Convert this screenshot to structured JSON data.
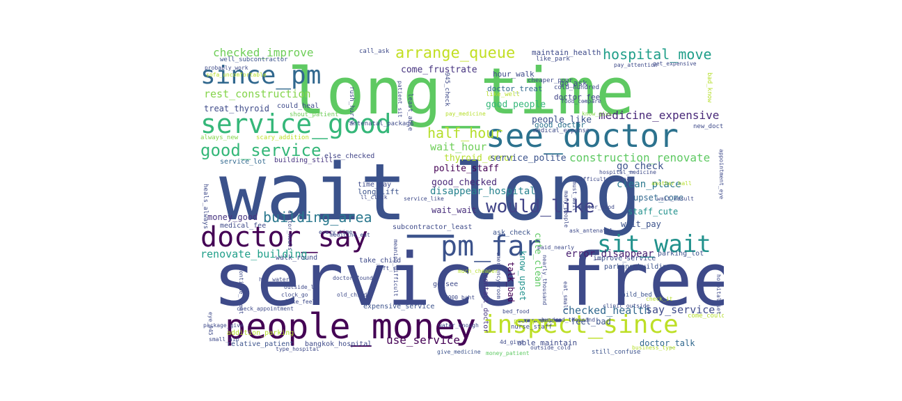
{
  "words": [
    {
      "text": "wait_long",
      "color": "#3b528b"
    },
    {
      "text": "service_free",
      "color": "#3e4a89"
    },
    {
      "text": "long_time",
      "color": "#5ec962"
    },
    {
      "text": "people_money",
      "color": "#440154"
    },
    {
      "text": "see_doctor",
      "color": "#2c728e"
    },
    {
      "text": "service_good",
      "color": "#35b779"
    },
    {
      "text": "doctor_say",
      "color": "#440154"
    },
    {
      "text": "inspect_since",
      "color": "#bddf26"
    },
    {
      "text": "since_pm",
      "color": "#31688e"
    },
    {
      "text": "pm_far",
      "color": "#3b528b"
    },
    {
      "text": "sit_wait",
      "color": "#21918c"
    },
    {
      "text": "arrange_queue",
      "color": "#c2df23"
    },
    {
      "text": "hospital_move",
      "color": "#1f9e89"
    },
    {
      "text": "good_service",
      "color": "#35b779"
    },
    {
      "text": "would_like",
      "color": "#414487"
    },
    {
      "text": "building_area",
      "color": "#2a788e"
    },
    {
      "text": "half_hour",
      "color": "#b5de2b"
    },
    {
      "text": "checked_improve",
      "color": "#6ece58"
    },
    {
      "text": "medicine_expensive",
      "color": "#482878"
    },
    {
      "text": "construction_renovate",
      "color": "#5ec962"
    },
    {
      "text": "wait_hour",
      "color": "#6ece58"
    },
    {
      "text": "use_service",
      "color": "#440154"
    },
    {
      "text": "rest_construction",
      "color": "#84d44b"
    },
    {
      "text": "checked_health",
      "color": "#31688e"
    },
    {
      "text": "say_service",
      "color": "#3e4a89"
    },
    {
      "text": "renovate_building",
      "color": "#1f9e89"
    },
    {
      "text": "error_disappear",
      "color": "#481f70"
    },
    {
      "text": "disappear_hospital",
      "color": "#26828e"
    },
    {
      "text": "go_check",
      "color": "#3b528b"
    },
    {
      "text": "clean_place",
      "color": "#2a788e"
    },
    {
      "text": "polite_staff",
      "color": "#440154"
    },
    {
      "text": "good_checked",
      "color": "#482878"
    },
    {
      "text": "thyroid_error",
      "color": "#b5de2b"
    },
    {
      "text": "service_polite",
      "color": "#3b528b"
    },
    {
      "text": "come_frustrate",
      "color": "#46337f"
    },
    {
      "text": "good_people",
      "color": "#35b779"
    },
    {
      "text": "people_like",
      "color": "#3b528b"
    },
    {
      "text": "treat_thyroid",
      "color": "#3e4a89"
    },
    {
      "text": "money_good",
      "color": "#46337f"
    },
    {
      "text": "wait_pay",
      "color": "#3b528b"
    },
    {
      "text": "staff_cute",
      "color": "#21918c"
    },
    {
      "text": "upset_come",
      "color": "#31688e"
    },
    {
      "text": "wait_wait",
      "color": "#472d7b"
    },
    {
      "text": "good_doctor",
      "color": "#2c728e"
    },
    {
      "text": "maintain_health",
      "color": "#3e4a89"
    },
    {
      "text": "doctor_treat",
      "color": "#31688e"
    },
    {
      "text": "go_ask",
      "color": "#3e4a89"
    },
    {
      "text": "doctor_fee",
      "color": "#414487"
    },
    {
      "text": "hour_walk",
      "color": "#3e4a89"
    },
    {
      "text": "cute_clean",
      "color": "#5ec962"
    },
    {
      "text": "know_upset",
      "color": "#21918c"
    },
    {
      "text": "talk_bad",
      "color": "#440154"
    },
    {
      "text": "feel_bad",
      "color": "#3b528b"
    },
    {
      "text": "doctor_talk",
      "color": "#31688e"
    },
    {
      "text": "able_maintain",
      "color": "#3e4a89"
    },
    {
      "text": "relative_patient",
      "color": "#3b528b"
    },
    {
      "text": "bangkok_hospital",
      "color": "#3e4a89"
    },
    {
      "text": "addition_parking",
      "color": "#b5de2b"
    },
    {
      "text": "long_lift",
      "color": "#3b528b"
    },
    {
      "text": "medical_fee",
      "color": "#3e4a89"
    },
    {
      "text": "service_lot",
      "color": "#31688e"
    },
    {
      "text": "building_still",
      "color": "#46337f"
    },
    {
      "text": "else_checked",
      "color": "#414487"
    },
    {
      "text": "time_pay",
      "color": "#3e4a89"
    },
    {
      "text": "could_heal",
      "color": "#3e4a89"
    },
    {
      "text": "shout_patient",
      "color": "#6ece58"
    },
    {
      "text": "scary_addition",
      "color": "#bddf26"
    },
    {
      "text": "always_new",
      "color": "#84d44b"
    },
    {
      "text": "call_ask",
      "color": "#3e4a89"
    },
    {
      "text": "well_subcontractor",
      "color": "#3b528b"
    },
    {
      "text": "parking_lot",
      "color": "#3b528b"
    },
    {
      "text": "ask_check",
      "color": "#3b528b"
    },
    {
      "text": "parking_building",
      "color": "#3b528b"
    },
    {
      "text": "improve_service",
      "color": "#3b528b"
    },
    {
      "text": "expensive_service",
      "color": "#3b528b"
    },
    {
      "text": "go_see",
      "color": "#3e4a89"
    },
    {
      "text": "contact_doctor",
      "color": "#46337f"
    },
    {
      "text": "walk_round",
      "color": "#3e4a89"
    },
    {
      "text": "take_child",
      "color": "#3e4a89"
    },
    {
      "text": "subcontractor_least",
      "color": "#3e4a89"
    },
    {
      "text": "hospital_medicine",
      "color": "#3e4a89"
    },
    {
      "text": "new_doctor",
      "color": "#3e4a89"
    },
    {
      "text": "medical_expense",
      "color": "#3e4a89"
    },
    {
      "text": "know_give",
      "color": "#84d44b"
    },
    {
      "text": "come_could",
      "color": "#b5de2b"
    },
    {
      "text": "child_bed",
      "color": "#3b528b"
    },
    {
      "text": "still_confuse",
      "color": "#3b528b"
    },
    {
      "text": "give_medicine",
      "color": "#3b528b"
    },
    {
      "text": "money_patient",
      "color": "#5ec962"
    },
    {
      "text": "nurse_staff",
      "color": "#3e4a89"
    },
    {
      "text": "poor_people",
      "color": "#b5de2b"
    },
    {
      "text": "like_well",
      "color": "#b5de2b"
    },
    {
      "text": "antenatal_package",
      "color": "#3e4a89"
    },
    {
      "text": "like_park",
      "color": "#3e4a89"
    },
    {
      "text": "cheaper_poor",
      "color": "#3e4a89"
    },
    {
      "text": "cold_hundred",
      "color": "#3e4a89"
    },
    {
      "text": "eye_945",
      "color": "#3e4a89"
    },
    {
      "text": "heals_always",
      "color": "#3e4a89"
    },
    {
      "text": "outside_ll",
      "color": "#3e4a89"
    },
    {
      "text": "clock_go",
      "color": "#3e4a89"
    },
    {
      "text": "doctor_found",
      "color": "#3e4a89"
    },
    {
      "text": "like_feel",
      "color": "#3e4a89"
    },
    {
      "text": "old_child",
      "color": "#3e4a89"
    },
    {
      "text": "check_appointment",
      "color": "#3e4a89"
    },
    {
      "text": "hot_water",
      "color": "#3e4a89"
    },
    {
      "text": "every_time",
      "color": "#3e4a89"
    },
    {
      "text": "ll_clock",
      "color": "#3e4a89"
    },
    {
      "text": "lift_scary",
      "color": "#3e4a89"
    },
    {
      "text": "service_like",
      "color": "#3e4a89"
    },
    {
      "text": "pay_medicine",
      "color": "#b5de2b"
    },
    {
      "text": "difficult_contact",
      "color": "#3e4a89"
    },
    {
      "text": "must_wait",
      "color": "#3e4a89"
    },
    {
      "text": "many_people",
      "color": "#3e4a89"
    },
    {
      "text": "another_hall",
      "color": "#b5de2b"
    },
    {
      "text": "wait_result",
      "color": "#3e4a89"
    },
    {
      "text": "appointment_eye",
      "color": "#3e4a89"
    },
    {
      "text": "bad_know",
      "color": "#b5de2b"
    },
    {
      "text": "pay_attention",
      "color": "#3e4a89"
    },
    {
      "text": "get_expensive",
      "color": "#3e4a89"
    },
    {
      "text": "ask_antenatal",
      "color": "#3e4a89"
    },
    {
      "text": "paid_nearly",
      "color": "#3e4a89"
    },
    {
      "text": "emergency_room",
      "color": "#3e4a89"
    },
    {
      "text": "rush_hurry",
      "color": "#3e4a89"
    },
    {
      "text": "least_able",
      "color": "#3e4a89"
    },
    {
      "text": "945_check",
      "color": "#3e4a89"
    },
    {
      "text": "patient_sit",
      "color": "#3e4a89"
    },
    {
      "text": "probably_work",
      "color": "#3e4a89"
    },
    {
      "text": "sofa_uncomfortable",
      "color": "#b5de2b"
    },
    {
      "text": "meaning_difficult",
      "color": "#3e4a89"
    },
    {
      "text": "bed_food",
      "color": "#3e4a89"
    },
    {
      "text": "water_enough",
      "color": "#3e4a89"
    },
    {
      "text": "hundred_thousand",
      "color": "#3e4a89"
    },
    {
      "text": "medicine_eat",
      "color": "#3e4a89"
    },
    {
      "text": "nearly_thousand",
      "color": "#3e4a89"
    },
    {
      "text": "business_type",
      "color": "#b5de2b"
    },
    {
      "text": "type_hospital",
      "color": "#3e4a89"
    },
    {
      "text": "package_give",
      "color": "#3e4a89"
    },
    {
      "text": "continue_treat",
      "color": "#3e4a89"
    },
    {
      "text": "doctor_heals",
      "color": "#3e4a89"
    },
    {
      "text": "much_cheaper",
      "color": "#b5de2b"
    },
    {
      "text": "17000_baht",
      "color": "#3e4a89"
    },
    {
      "text": "doctor_good",
      "color": "#3e4a89"
    },
    {
      "text": "clinic_outside",
      "color": "#3e4a89"
    },
    {
      "text": "eat_small",
      "color": "#3e4a89"
    },
    {
      "text": "outside_cold",
      "color": "#3e4a89"
    },
    {
      "text": "4d_give",
      "color": "#3e4a89"
    },
    {
      "text": "check_it",
      "color": "#b5de2b"
    },
    {
      "text": "hospital_set",
      "color": "#3e4a89"
    },
    {
      "text": "small_aid",
      "color": "#3e4a89"
    },
    {
      "text": "food_compare",
      "color": "#3e4a89"
    }
  ]
}
